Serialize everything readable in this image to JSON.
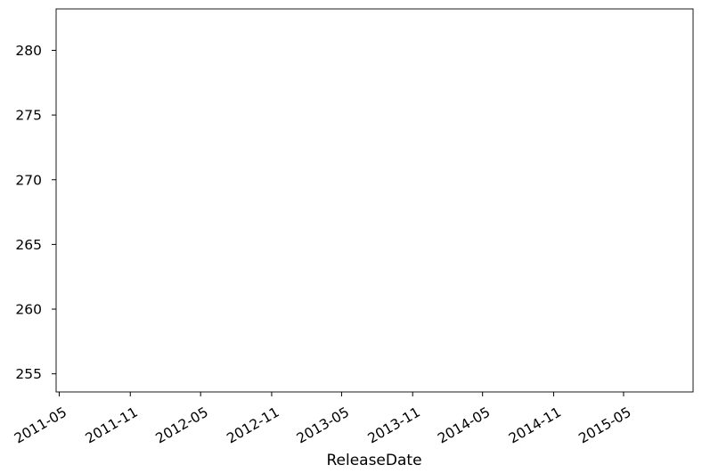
{
  "chart_data": {
    "type": "line",
    "title": "",
    "xlabel": "ReleaseDate",
    "ylabel": "",
    "x_type": "date",
    "xlim": [
      "2011-04-23",
      "2015-10-28"
    ],
    "ylim": [
      253.6,
      283.2
    ],
    "x_ticks": [
      "2011-05",
      "2011-11",
      "2012-05",
      "2012-11",
      "2013-05",
      "2013-11",
      "2014-05",
      "2014-11",
      "2015-05"
    ],
    "y_ticks": [
      255,
      260,
      265,
      270,
      275,
      280
    ],
    "grid": false,
    "legend": "none",
    "series": []
  }
}
